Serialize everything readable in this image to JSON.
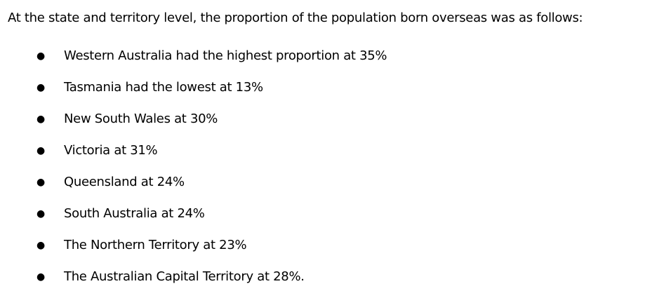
{
  "intro": "At the state and territory level, the proportion of the population born overseas was as follows:",
  "items": [
    "Western Australia had the highest proportion at 35%",
    "Tasmania had the lowest at 13%",
    "New South Wales at 30%",
    "Victoria at 31%",
    "Queensland at 24%",
    "South Australia at 24%",
    "The Northern Territory at 23%",
    "The Australian Capital Territory at 28%."
  ]
}
